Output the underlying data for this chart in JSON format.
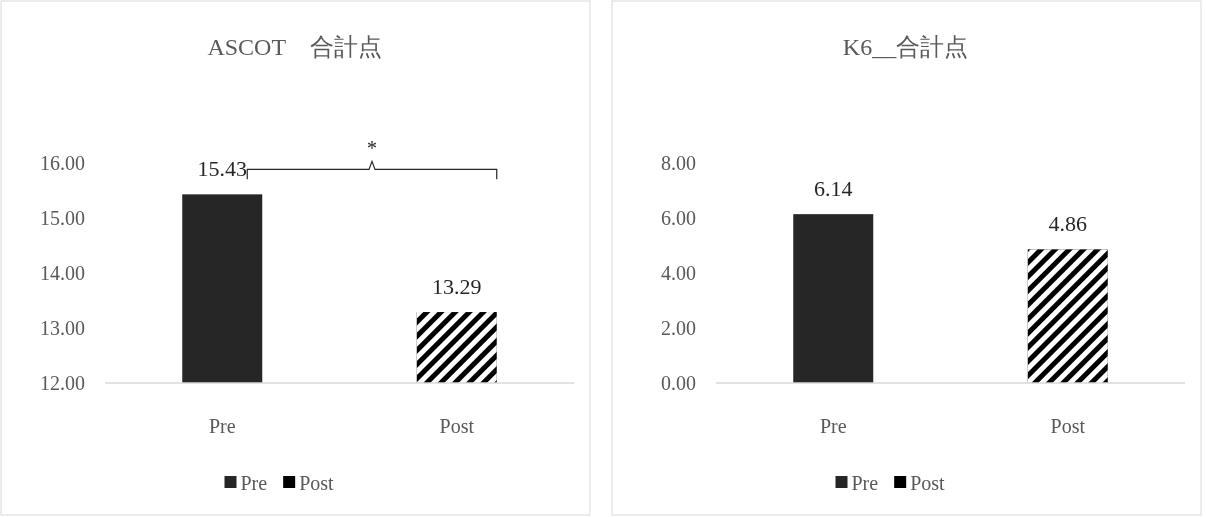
{
  "chart_data": [
    {
      "type": "bar",
      "title": "ASCOT　合計点",
      "categories": [
        "Pre",
        "Post"
      ],
      "series": [
        {
          "name": "Pre",
          "color": "#262626",
          "values": [
            15.43,
            null
          ]
        },
        {
          "name": "Post",
          "color": "#000000",
          "values": [
            null,
            13.29
          ]
        }
      ],
      "ylim": [
        12,
        16
      ],
      "yticks": [
        {
          "value": 12,
          "label": "12.00"
        },
        {
          "value": 13,
          "label": "13.00"
        },
        {
          "value": 14,
          "label": "14.00"
        },
        {
          "value": 15,
          "label": "15.00"
        },
        {
          "value": 16,
          "label": "16.00"
        }
      ],
      "data_labels": true,
      "legend": "bottom",
      "annotations": [
        "*"
      ]
    },
    {
      "type": "bar",
      "title": "K6__合計点",
      "categories": [
        "Pre",
        "Post"
      ],
      "series": [
        {
          "name": "Pre",
          "color": "#262626",
          "values": [
            6.14,
            null
          ]
        },
        {
          "name": "Post",
          "color": "#000000",
          "values": [
            null,
            4.86
          ]
        }
      ],
      "ylim": [
        0,
        8
      ],
      "yticks": [
        {
          "value": 0,
          "label": "0.00"
        },
        {
          "value": 2,
          "label": "2.00"
        },
        {
          "value": 4,
          "label": "4.00"
        },
        {
          "value": 6,
          "label": "6.00"
        },
        {
          "value": 8,
          "label": "8.00"
        }
      ],
      "data_labels": true,
      "legend": "bottom"
    }
  ]
}
